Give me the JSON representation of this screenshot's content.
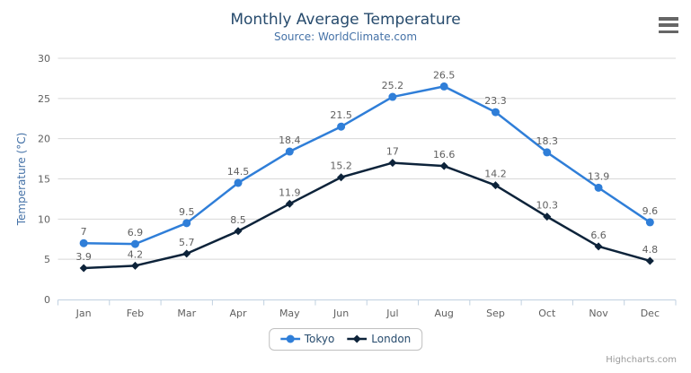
{
  "header": {
    "title": "Monthly Average Temperature",
    "subtitle": "Source: WorldClimate.com"
  },
  "credits": "Highcharts.com",
  "menu_icon": "hamburger-icon",
  "colors": {
    "title": "#274b6d",
    "subtitle": "#4572a7",
    "axis_title": "#4572a7",
    "tick_label": "#606060",
    "data_label": "#606060",
    "grid_line": "#d8d8d8",
    "axis_line": "#c0d0e0",
    "legend_border": "#c0c0c0",
    "credits_text": "#999999",
    "menu_icon_color": "#666666"
  },
  "chart_data": {
    "type": "line",
    "title": "Monthly Average Temperature",
    "subtitle": "Source: WorldClimate.com",
    "xlabel": "",
    "ylabel": "Temperature (°C)",
    "ylim": [
      0,
      30
    ],
    "yticks": [
      0,
      5,
      10,
      15,
      20,
      25,
      30
    ],
    "grid": true,
    "legend_position": "bottom",
    "data_labels": true,
    "categories": [
      "Jan",
      "Feb",
      "Mar",
      "Apr",
      "May",
      "Jun",
      "Jul",
      "Aug",
      "Sep",
      "Oct",
      "Nov",
      "Dec"
    ],
    "series": [
      {
        "name": "Tokyo",
        "color": "#2f7ed8",
        "marker": "circle",
        "values": [
          7,
          6.9,
          9.5,
          14.5,
          18.4,
          21.5,
          25.2,
          26.5,
          23.3,
          18.3,
          13.9,
          9.6
        ]
      },
      {
        "name": "London",
        "color": "#0d233a",
        "marker": "diamond",
        "values": [
          3.9,
          4.2,
          5.7,
          8.5,
          11.9,
          15.2,
          17,
          16.6,
          14.2,
          10.3,
          6.6,
          4.8
        ]
      }
    ]
  }
}
